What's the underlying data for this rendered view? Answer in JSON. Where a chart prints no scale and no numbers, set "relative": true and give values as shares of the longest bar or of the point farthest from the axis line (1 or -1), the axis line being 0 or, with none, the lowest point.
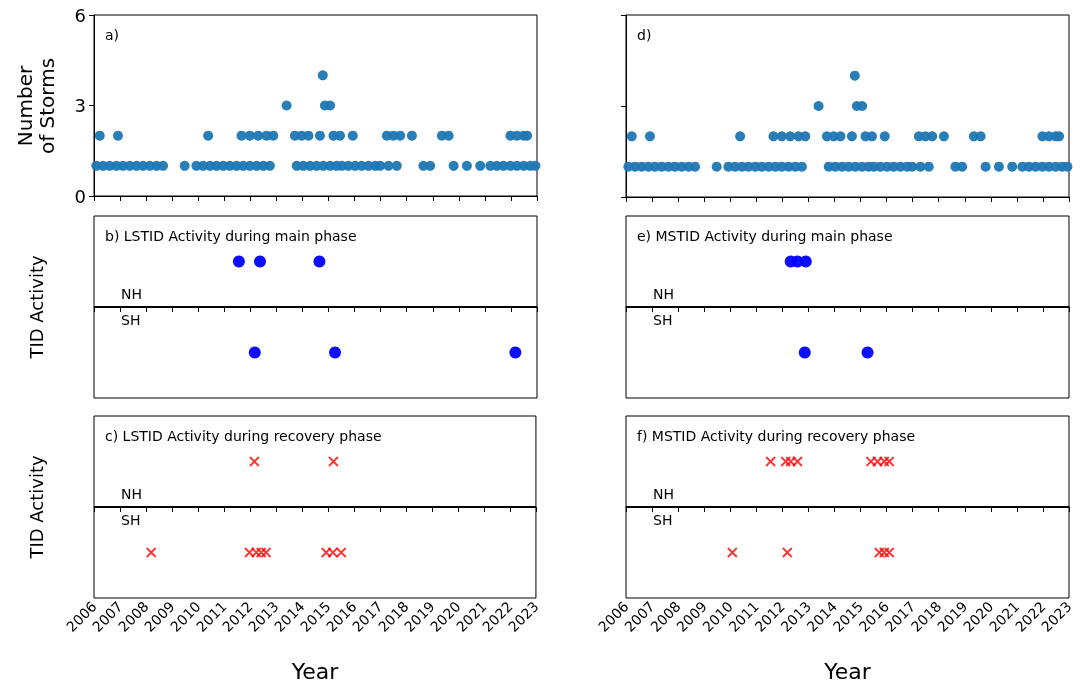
{
  "chart_data": [
    {
      "type": "scatter",
      "title": "a)",
      "ylabel": "Number\nof Storms",
      "color": "#1f77b4",
      "marker": "circle",
      "xlim": [
        2006,
        2023
      ],
      "xticks": [
        2006,
        2007,
        2008,
        2009,
        2010,
        2011,
        2012,
        2013,
        2014,
        2015,
        2016,
        2017,
        2018,
        2019,
        2020,
        2021,
        2022,
        2023
      ],
      "ylim": [
        0,
        6
      ],
      "yticks": [
        0,
        3,
        6
      ],
      "tick_labels": "y",
      "x": [
        2006.09,
        2006.35,
        2006.6,
        2006.86,
        2007.11,
        2007.37,
        2007.63,
        2007.88,
        2008.14,
        2008.4,
        2008.65,
        2009.48,
        2009.93,
        2010.19,
        2010.45,
        2010.7,
        2010.96,
        2011.21,
        2011.47,
        2011.73,
        2011.98,
        2012.24,
        2012.5,
        2012.75,
        2013.78,
        2014.03,
        2014.29,
        2014.54,
        2014.8,
        2015.06,
        2015.31,
        2015.51,
        2015.76,
        2016.02,
        2016.27,
        2016.53,
        2016.79,
        2016.98,
        2017.3,
        2017.62,
        2018.64,
        2018.9,
        2019.8,
        2020.31,
        2020.82,
        2021.21,
        2021.46,
        2021.72,
        2021.98,
        2022.23,
        2022.49,
        2022.74,
        2022.94,
        2006.22,
        2006.92,
        2010.38,
        2011.66,
        2011.98,
        2012.3,
        2012.62,
        2012.88,
        2013.71,
        2013.97,
        2014.23,
        2014.67,
        2015.19,
        2015.44,
        2015.93,
        2017.24,
        2017.49,
        2017.75,
        2018.2,
        2019.35,
        2019.61,
        2021.98,
        2022.23,
        2022.49,
        2022.62,
        2013.39,
        2014.86,
        2015.06,
        2014.78
      ],
      "values": [
        1,
        1,
        1,
        1,
        1,
        1,
        1,
        1,
        1,
        1,
        1,
        1,
        1,
        1,
        1,
        1,
        1,
        1,
        1,
        1,
        1,
        1,
        1,
        1,
        1,
        1,
        1,
        1,
        1,
        1,
        1,
        1,
        1,
        1,
        1,
        1,
        1,
        1,
        1,
        1,
        1,
        1,
        1,
        1,
        1,
        1,
        1,
        1,
        1,
        1,
        1,
        1,
        1,
        2,
        2,
        2,
        2,
        2,
        2,
        2,
        2,
        2,
        2,
        2,
        2,
        2,
        2,
        2,
        2,
        2,
        2,
        2,
        2,
        2,
        2,
        2,
        2,
        2,
        3,
        3,
        3,
        4
      ]
    },
    {
      "type": "scatter",
      "title": "b) LSTID Activity during main phase",
      "ylabel": "TID Activity",
      "color": "#0000ff",
      "marker": "circle",
      "relative": true,
      "xlim": [
        2006,
        2023
      ],
      "xticks": [
        2006,
        2007,
        2008,
        2009,
        2010,
        2011,
        2012,
        2013,
        2014,
        2015,
        2016,
        2017,
        2018,
        2019,
        2020,
        2021,
        2022,
        2023
      ],
      "tick_labels": false,
      "annotations": [
        "NH",
        "SH"
      ],
      "ref_lines": [
        {
          "axis": "y",
          "value": 0,
          "color": "#000000"
        }
      ],
      "x": [
        2011.56,
        2012.37,
        2014.65,
        2012.17,
        2015.25,
        2022.17
      ],
      "values": [
        1,
        1,
        1,
        -1,
        -1,
        -1
      ]
    },
    {
      "type": "scatter",
      "title": "c) LSTID Activity during recovery phase",
      "ylabel": "TID Activity",
      "xlabel": "Year",
      "color": "#ff0000",
      "marker": "cross",
      "relative": true,
      "xlim": [
        2006,
        2023
      ],
      "xticks": [
        2006,
        2007,
        2008,
        2009,
        2010,
        2011,
        2012,
        2013,
        2014,
        2015,
        2016,
        2017,
        2018,
        2019,
        2020,
        2021,
        2022,
        2023
      ],
      "tick_labels": "x",
      "annotations": [
        "NH",
        "SH"
      ],
      "ref_lines": [
        {
          "axis": "y",
          "value": 0,
          "color": "#000000"
        }
      ],
      "x": [
        2012.17,
        2015.21,
        2008.2,
        2011.98,
        2012.24,
        2012.43,
        2012.62,
        2014.93,
        2015.19,
        2015.51
      ],
      "values": [
        1,
        1,
        -1,
        -1,
        -1,
        -1,
        -1,
        -1,
        -1,
        -1
      ]
    },
    {
      "type": "scatter",
      "title": "d)",
      "color": "#1f77b4",
      "marker": "circle",
      "xlim": [
        2006,
        2023
      ],
      "xticks": [
        2006,
        2007,
        2008,
        2009,
        2010,
        2011,
        2012,
        2013,
        2014,
        2015,
        2016,
        2017,
        2018,
        2019,
        2020,
        2021,
        2022,
        2023
      ],
      "ylim": [
        0,
        6
      ],
      "yticks": [
        0,
        3,
        6
      ],
      "tick_labels": false,
      "x": [
        2006.09,
        2006.35,
        2006.6,
        2006.86,
        2007.11,
        2007.37,
        2007.63,
        2007.88,
        2008.14,
        2008.4,
        2008.65,
        2009.48,
        2009.93,
        2010.19,
        2010.45,
        2010.7,
        2010.96,
        2011.21,
        2011.47,
        2011.73,
        2011.98,
        2012.24,
        2012.5,
        2012.75,
        2013.78,
        2014.03,
        2014.29,
        2014.54,
        2014.8,
        2015.06,
        2015.31,
        2015.51,
        2015.76,
        2016.02,
        2016.27,
        2016.53,
        2016.79,
        2016.98,
        2017.3,
        2017.62,
        2018.64,
        2018.9,
        2019.8,
        2020.31,
        2020.82,
        2021.21,
        2021.46,
        2021.72,
        2021.98,
        2022.23,
        2022.49,
        2022.74,
        2022.94,
        2006.22,
        2006.92,
        2010.38,
        2011.66,
        2011.98,
        2012.3,
        2012.62,
        2012.88,
        2013.71,
        2013.97,
        2014.23,
        2014.67,
        2015.19,
        2015.44,
        2015.93,
        2017.24,
        2017.49,
        2017.75,
        2018.2,
        2019.35,
        2019.61,
        2021.98,
        2022.23,
        2022.49,
        2022.62,
        2013.39,
        2014.86,
        2015.06,
        2014.78
      ],
      "values": [
        1,
        1,
        1,
        1,
        1,
        1,
        1,
        1,
        1,
        1,
        1,
        1,
        1,
        1,
        1,
        1,
        1,
        1,
        1,
        1,
        1,
        1,
        1,
        1,
        1,
        1,
        1,
        1,
        1,
        1,
        1,
        1,
        1,
        1,
        1,
        1,
        1,
        1,
        1,
        1,
        1,
        1,
        1,
        1,
        1,
        1,
        1,
        1,
        1,
        1,
        1,
        1,
        1,
        2,
        2,
        2,
        2,
        2,
        2,
        2,
        2,
        2,
        2,
        2,
        2,
        2,
        2,
        2,
        2,
        2,
        2,
        2,
        2,
        2,
        2,
        2,
        2,
        2,
        3,
        3,
        3,
        4
      ]
    },
    {
      "type": "scatter",
      "title": "e) MSTID Activity during main phase",
      "color": "#0000ff",
      "marker": "circle",
      "relative": true,
      "xlim": [
        2006,
        2023
      ],
      "xticks": [
        2006,
        2007,
        2008,
        2009,
        2010,
        2011,
        2012,
        2013,
        2014,
        2015,
        2016,
        2017,
        2018,
        2019,
        2020,
        2021,
        2022,
        2023
      ],
      "tick_labels": false,
      "annotations": [
        "NH",
        "SH"
      ],
      "ref_lines": [
        {
          "axis": "y",
          "value": 0,
          "color": "#000000"
        }
      ],
      "x": [
        2012.32,
        2012.58,
        2012.9,
        2012.86,
        2015.27
      ],
      "values": [
        1,
        1,
        1,
        -1,
        -1
      ]
    },
    {
      "type": "scatter",
      "title": "f) MSTID Activity during recovery phase",
      "xlabel": "Year",
      "color": "#ff0000",
      "marker": "cross",
      "relative": true,
      "xlim": [
        2006,
        2023
      ],
      "xticks": [
        2006,
        2007,
        2008,
        2009,
        2010,
        2011,
        2012,
        2013,
        2014,
        2015,
        2016,
        2017,
        2018,
        2019,
        2020,
        2021,
        2022,
        2023
      ],
      "tick_labels": "x",
      "annotations": [
        "NH",
        "SH"
      ],
      "ref_lines": [
        {
          "axis": "y",
          "value": 0,
          "color": "#000000"
        }
      ],
      "x": [
        2011.55,
        2012.13,
        2012.32,
        2012.58,
        2015.4,
        2015.65,
        2015.91,
        2016.1,
        2010.08,
        2012.19,
        2015.72,
        2015.91,
        2016.1
      ],
      "values": [
        1,
        1,
        1,
        1,
        1,
        1,
        1,
        1,
        -1,
        -1,
        -1,
        -1,
        -1
      ]
    }
  ]
}
